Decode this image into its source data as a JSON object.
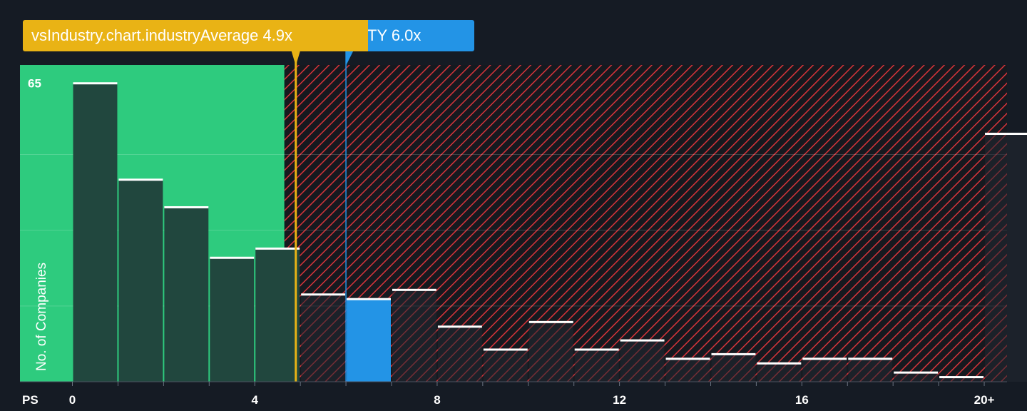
{
  "chart_data": {
    "type": "bar",
    "title": "",
    "xlabel": "PS",
    "ylabel": "No. of Companies",
    "xlim": [
      -1.15,
      20.5
    ],
    "ylim": [
      0,
      69
    ],
    "bin_width": 1,
    "bins": [
      {
        "x": 0,
        "value": 65
      },
      {
        "x": 1,
        "value": 44
      },
      {
        "x": 2,
        "value": 38
      },
      {
        "x": 3,
        "value": 27
      },
      {
        "x": 4,
        "value": 29
      },
      {
        "x": 5,
        "value": 19
      },
      {
        "x": 6,
        "value": 18
      },
      {
        "x": 7,
        "value": 20
      },
      {
        "x": 8,
        "value": 12
      },
      {
        "x": 9,
        "value": 7
      },
      {
        "x": 10,
        "value": 13
      },
      {
        "x": 11,
        "value": 7
      },
      {
        "x": 12,
        "value": 9
      },
      {
        "x": 13,
        "value": 5
      },
      {
        "x": 14,
        "value": 6
      },
      {
        "x": 15,
        "value": 4
      },
      {
        "x": 16,
        "value": 5
      },
      {
        "x": 17,
        "value": 5
      },
      {
        "x": 18,
        "value": 2
      },
      {
        "x": 19,
        "value": 1
      },
      {
        "x": 20,
        "value": 54
      }
    ],
    "x_ticks": [
      {
        "value": 0,
        "label": "0"
      },
      {
        "value": 4,
        "label": "4"
      },
      {
        "value": 8,
        "label": "8"
      },
      {
        "value": 12,
        "label": "12"
      },
      {
        "value": 16,
        "label": "16"
      },
      {
        "value": 20,
        "label": "20+"
      }
    ],
    "y_ticks": [
      {
        "value": 65,
        "label": "65"
      }
    ],
    "gridlines_y": [
      16.5,
      33,
      49.5
    ],
    "fair_range": [
      -1.15,
      4.65
    ],
    "industry_average": {
      "value": 4.9,
      "label": "vsIndustry.chart.industryAverage 4.9x"
    },
    "company": {
      "value": 6.0,
      "label": "TY 6.0x",
      "bin": 6
    },
    "grid": true,
    "colors": {
      "background": "#151b24",
      "fair_zone": "#2ecb7e",
      "overvalued_hatch": "#d8343a",
      "bar_dark": "#21473e",
      "company_bar": "#2394e6",
      "industry_line": "#e9b315",
      "company_line": "#2394e6",
      "bar_top": "#ffffff"
    }
  }
}
